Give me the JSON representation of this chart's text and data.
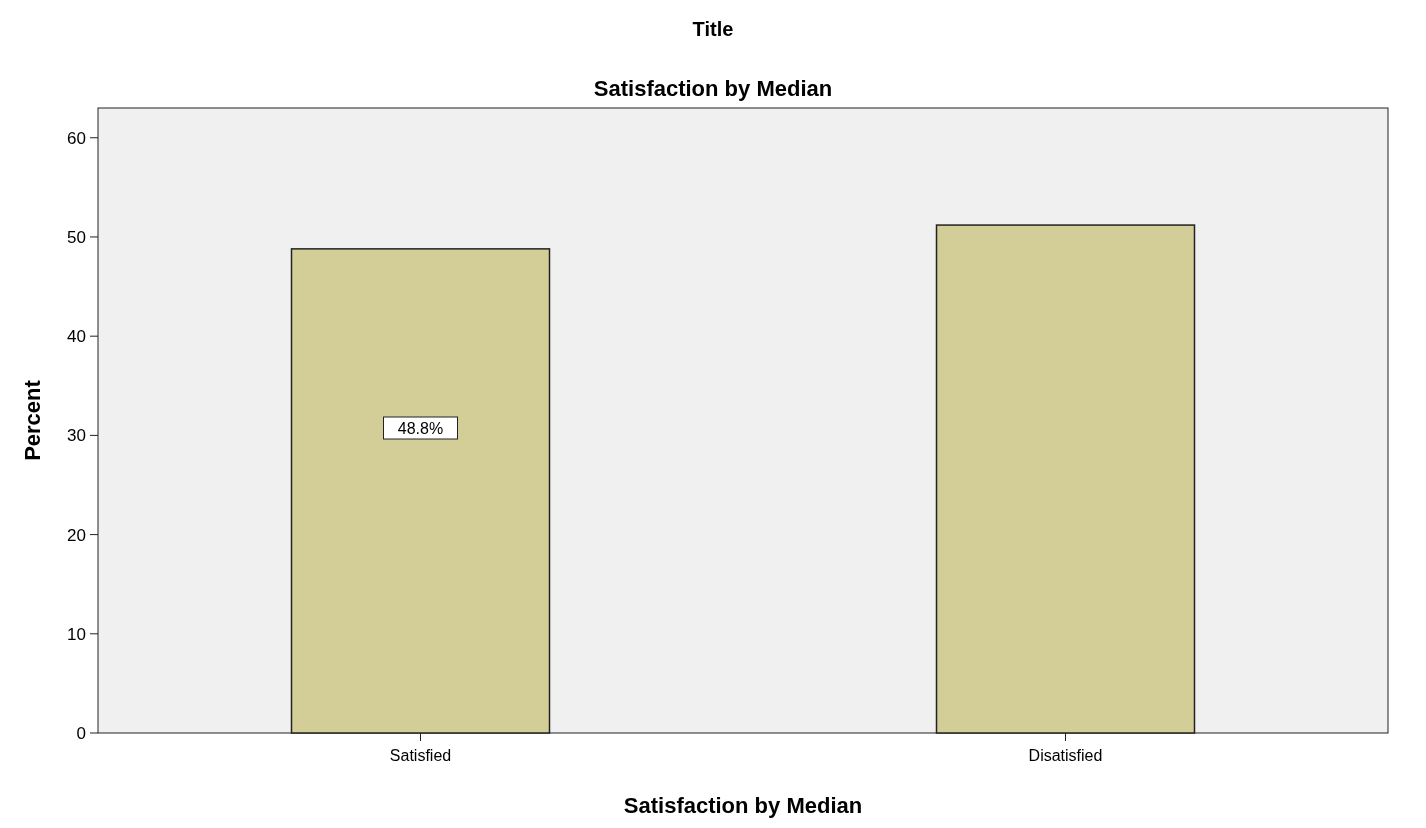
{
  "chart_data": {
    "type": "bar",
    "title": "Title",
    "subtitle": "Satisfaction by Median",
    "xlabel": "Satisfaction by Median",
    "ylabel": "Percent",
    "categories": [
      "Satisfied",
      "Disatisfied"
    ],
    "values": [
      48.8,
      51.2
    ],
    "color": "#d3cd97",
    "value_labels": [
      "48.8%",
      null
    ],
    "ylim": [
      0,
      63
    ],
    "yticks": [
      0,
      10,
      20,
      30,
      40,
      50,
      60
    ],
    "grid": false
  }
}
